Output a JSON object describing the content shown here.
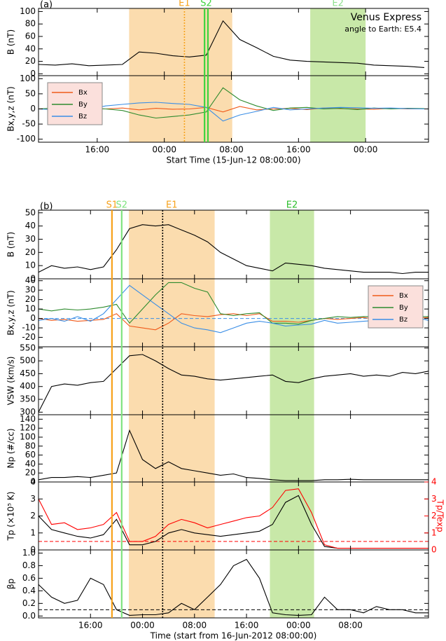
{
  "chart_data": [
    {
      "type": "stacked-panels",
      "label": "(a)",
      "xlim": [
        1,
        47.5
      ],
      "xticks": [
        {
          "value": 8,
          "label": "16:00"
        },
        {
          "value": 16,
          "label": "00:00"
        },
        {
          "value": 24,
          "label": "08:00"
        },
        {
          "value": 32,
          "label": "16:00"
        },
        {
          "value": 40,
          "label": "00:00"
        }
      ],
      "xlabel": "Start Time (15-Jun-12 08:00:00)",
      "annotations": [
        "Venus Express",
        "angle to Earth: E5.4"
      ],
      "regions": [
        {
          "x0": 11.8,
          "x1": 24.1,
          "color": "#fbdcae"
        },
        {
          "x0": 33.4,
          "x1": 40.0,
          "color": "#c8e8a8",
          "label": "E2",
          "label_color": "#8ee08e"
        }
      ],
      "markers": [
        {
          "label": "E1",
          "x": [
            18.4
          ],
          "color": "#f7a21b",
          "style": "dotted"
        },
        {
          "label": "S2",
          "x": [
            20.8,
            21.2
          ],
          "color": "#3ed33e",
          "style": "solid"
        }
      ],
      "x": [
        1,
        3,
        5,
        7,
        9,
        11,
        13,
        15,
        17,
        19,
        21,
        23,
        25,
        27,
        29,
        31,
        33,
        35,
        37,
        39,
        41,
        43,
        45,
        47
      ],
      "panels": [
        {
          "type": "line",
          "ylabel": "B (nT)",
          "ylim": [
            -3,
            105
          ],
          "yticks": [
            0,
            20,
            40,
            60,
            80,
            100
          ],
          "series": [
            {
              "name": "B",
              "color": "#000000",
              "values": [
                15,
                14,
                16,
                13,
                14,
                15,
                35,
                33,
                29,
                27,
                30,
                85,
                55,
                42,
                28,
                22,
                20,
                19,
                18,
                17,
                14,
                13,
                12,
                10
              ]
            }
          ]
        },
        {
          "type": "line",
          "ylabel": "Bx,y,z (nT)",
          "ylim": [
            -110,
            110
          ],
          "yticks": [
            -100,
            -50,
            0,
            50,
            100
          ],
          "legend": "left",
          "series": [
            {
              "name": "Bx",
              "color": "#f05a1a",
              "values": [
                0,
                2,
                -2,
                1,
                0,
                3,
                -3,
                2,
                -1,
                0,
                5,
                -10,
                8,
                -3,
                0,
                2,
                -2,
                3,
                1,
                0,
                -1,
                2,
                0,
                1
              ]
            },
            {
              "name": "By",
              "color": "#2e8b2e",
              "values": [
                0,
                3,
                -5,
                2,
                0,
                -5,
                -20,
                -30,
                -25,
                -20,
                -10,
                70,
                30,
                10,
                -5,
                3,
                5,
                0,
                2,
                -2,
                3,
                0,
                2,
                1
              ]
            },
            {
              "name": "Bz",
              "color": "#3a8ee6",
              "values": [
                0,
                -3,
                5,
                -2,
                10,
                15,
                20,
                22,
                18,
                15,
                5,
                -40,
                -20,
                -8,
                5,
                -3,
                0,
                3,
                5,
                4,
                2,
                3,
                1,
                0
              ]
            }
          ]
        }
      ]
    },
    {
      "type": "stacked-panels",
      "label": "(b)",
      "xlim": [
        0,
        60
      ],
      "xticks": [
        {
          "value": 8,
          "label": "16:00"
        },
        {
          "value": 16,
          "label": "00:00"
        },
        {
          "value": 24,
          "label": "08:00"
        },
        {
          "value": 32,
          "label": "16:00"
        },
        {
          "value": 40,
          "label": "00:00"
        },
        {
          "value": 48,
          "label": "08:00"
        }
      ],
      "xlabel": "Time (start from 16-Jun-2012 08:00:00)",
      "regions": [
        {
          "x0": 13.9,
          "x1": 27.1,
          "color": "#fbdcae",
          "label": "E1",
          "label_color": "#f7a21b"
        },
        {
          "x0": 35.6,
          "x1": 42.4,
          "color": "#c8e8a8",
          "label": "E2",
          "label_color": "#2ebf2e"
        }
      ],
      "markers": [
        {
          "label": "S1",
          "x": [
            11.3
          ],
          "color": "#f7a21b",
          "style": "solid"
        },
        {
          "label": "S2",
          "x": [
            12.8
          ],
          "color": "#7fe37f",
          "style": "solid"
        },
        {
          "x": [
            19.1
          ],
          "color": "#000000",
          "style": "dotted"
        }
      ],
      "x": [
        0,
        2,
        4,
        6,
        8,
        10,
        12,
        14,
        16,
        18,
        20,
        22,
        24,
        26,
        28,
        30,
        32,
        34,
        36,
        38,
        40,
        42,
        44,
        46,
        48,
        50,
        52,
        54,
        56,
        58,
        60
      ],
      "panels": [
        {
          "type": "line",
          "ylabel": "B (nT)",
          "ylim": [
            0,
            52
          ],
          "yticks": [
            0,
            10,
            20,
            30,
            40,
            50
          ],
          "series": [
            {
              "name": "B",
              "color": "#000000",
              "values": [
                5,
                10,
                8,
                9,
                7,
                9,
                22,
                38,
                41,
                40,
                41,
                37,
                33,
                28,
                20,
                15,
                10,
                8,
                6,
                12,
                11,
                10,
                8,
                7,
                6,
                5,
                5,
                5,
                4,
                5,
                5
              ]
            }
          ]
        },
        {
          "type": "line",
          "ylabel": "Bx,y,z (nT)",
          "ylim": [
            -30,
            42
          ],
          "yticks": [
            -20,
            -10,
            0,
            10,
            20,
            30,
            40
          ],
          "legend": "upper right",
          "reference_lines": [
            {
              "value": 0,
              "color": "#3a8ee6"
            }
          ],
          "series": [
            {
              "name": "Bx",
              "color": "#f05a1a",
              "values": [
                0,
                -2,
                -1,
                -3,
                -2,
                -1,
                5,
                -8,
                -10,
                -12,
                -5,
                5,
                3,
                2,
                4,
                5,
                3,
                5,
                -3,
                -3,
                -4,
                -2,
                0,
                -1,
                0,
                1,
                -1,
                0,
                1,
                0,
                1
              ]
            },
            {
              "name": "By",
              "color": "#2e8b2e",
              "values": [
                10,
                8,
                10,
                9,
                10,
                12,
                15,
                -5,
                10,
                25,
                38,
                38,
                32,
                28,
                5,
                3,
                5,
                6,
                -5,
                -5,
                -6,
                -2,
                0,
                2,
                1,
                2,
                2,
                2,
                3,
                2,
                2
              ]
            },
            {
              "name": "Bz",
              "color": "#3a8ee6",
              "values": [
                -2,
                0,
                -3,
                2,
                -3,
                5,
                20,
                35,
                25,
                15,
                5,
                -5,
                -10,
                -12,
                -15,
                -10,
                -5,
                -3,
                -5,
                -8,
                -7,
                -6,
                -2,
                -5,
                -4,
                -3,
                -2,
                0,
                -1,
                1,
                -2
              ]
            }
          ]
        },
        {
          "type": "line",
          "ylabel": "VSW (km/s)",
          "ylim": [
            290,
            555
          ],
          "yticks": [
            300,
            350,
            400,
            450,
            500,
            550
          ],
          "series": [
            {
              "name": "Vsw",
              "color": "#000000",
              "values": [
                300,
                400,
                410,
                405,
                415,
                420,
                470,
                520,
                525,
                500,
                470,
                445,
                440,
                430,
                425,
                430,
                435,
                440,
                445,
                420,
                415,
                430,
                440,
                445,
                450,
                440,
                445,
                440,
                455,
                450,
                460
              ]
            }
          ]
        },
        {
          "type": "line",
          "ylabel": "Np (#/cc)",
          "ylim": [
            0,
            150
          ],
          "yticks": [
            0,
            20,
            40,
            60,
            80,
            100,
            120,
            140
          ],
          "series": [
            {
              "name": "Np",
              "color": "#000000",
              "values": [
                5,
                10,
                10,
                12,
                10,
                15,
                20,
                115,
                50,
                30,
                45,
                30,
                25,
                20,
                15,
                18,
                10,
                8,
                5,
                3,
                3,
                3,
                5,
                5,
                6,
                5,
                5,
                5,
                5,
                5,
                5
              ]
            }
          ]
        },
        {
          "type": "line",
          "ylabel": "Tp (×10⁵ K)",
          "ylim": [
            0,
            4
          ],
          "yticks": [
            0,
            1,
            2,
            3,
            4
          ],
          "y2label": "Tp/Texp",
          "y2lim": [
            0,
            4
          ],
          "y2ticks": [
            0,
            1,
            2,
            3,
            4
          ],
          "y2color": "#ff0000",
          "reference_lines": [
            {
              "value": 0.5,
              "axis": "y2",
              "color": "#ff0000"
            }
          ],
          "series": [
            {
              "name": "Tp",
              "color": "#000000",
              "values": [
                2,
                1.2,
                1,
                0.8,
                0.7,
                0.9,
                1.8,
                0.3,
                0.3,
                0.5,
                1,
                1.2,
                1,
                0.9,
                0.8,
                0.9,
                1,
                1.1,
                1.5,
                2.8,
                3.2,
                1.5,
                0.2,
                0.1,
                0.1,
                0.1,
                0.1,
                0.1,
                0.1,
                0.1,
                0.1
              ]
            },
            {
              "name": "Tp/Texp",
              "color": "#ff0000",
              "axis": "y2",
              "values": [
                3,
                1.5,
                1.6,
                1.2,
                1.3,
                1.5,
                2.2,
                0.5,
                0.5,
                0.8,
                1.5,
                1.8,
                1.6,
                1.3,
                1.5,
                1.7,
                1.9,
                2,
                2.5,
                3.5,
                3.6,
                2.2,
                0.3,
                0.1,
                0.1,
                0.1,
                0.1,
                0.1,
                0.1,
                0.1,
                0.1
              ]
            }
          ]
        },
        {
          "type": "line",
          "ylabel": "βp",
          "ylim": [
            -0.03,
            1.05
          ],
          "yticks": [
            {
              "value": 0,
              "label": "0.0"
            },
            0.2,
            0.4,
            0.6,
            0.8,
            {
              "value": 1,
              "label": "1.0"
            }
          ],
          "reference_lines": [
            {
              "value": 0.1,
              "color": "#000000"
            }
          ],
          "series": [
            {
              "name": "βp",
              "color": "#000000",
              "values": [
                0.5,
                0.3,
                0.2,
                0.25,
                0.6,
                0.5,
                0.1,
                0.01,
                0.02,
                0.02,
                0.05,
                0.2,
                0.1,
                0.3,
                0.5,
                0.8,
                0.9,
                0.6,
                0.05,
                0.02,
                0.01,
                0.02,
                0.3,
                0.1,
                0.1,
                0.05,
                0.15,
                0.1,
                0.1,
                0.05,
                0.05
              ]
            }
          ]
        }
      ]
    }
  ]
}
